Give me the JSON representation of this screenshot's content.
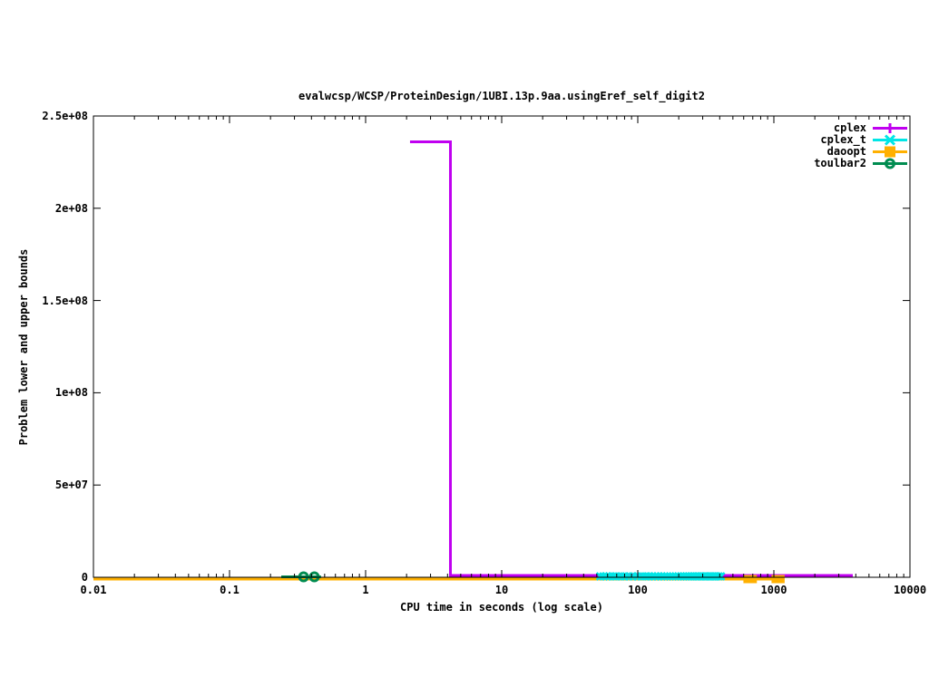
{
  "chart_data": {
    "type": "line",
    "title": "evalwcsp/WCSP/ProteinDesign/1UBI.13p.9aa.usingEref_self_digit2",
    "xlabel": "CPU time in seconds (log scale)",
    "ylabel": "Problem lower and upper bounds",
    "x_scale": "log",
    "xlim": [
      0.01,
      10000
    ],
    "ylim": [
      0,
      250000000
    ],
    "x_ticks": [
      {
        "value": 0.01,
        "label": "0.01"
      },
      {
        "value": 0.1,
        "label": "0.1"
      },
      {
        "value": 1,
        "label": "1"
      },
      {
        "value": 10,
        "label": "10"
      },
      {
        "value": 100,
        "label": "100"
      },
      {
        "value": 1000,
        "label": "1000"
      },
      {
        "value": 10000,
        "label": "10000"
      }
    ],
    "y_ticks": [
      {
        "value": 0,
        "label": "0"
      },
      {
        "value": 50000000,
        "label": "5e+07"
      },
      {
        "value": 100000000,
        "label": "1e+08"
      },
      {
        "value": 150000000,
        "label": "1.5e+08"
      },
      {
        "value": 200000000,
        "label": "2e+08"
      },
      {
        "value": 250000000,
        "label": "2.5e+08"
      }
    ],
    "grid": false,
    "legend_position": "top-right-inside",
    "series": [
      {
        "name": "cplex",
        "color": "#c000f0",
        "marker": "plus",
        "line_width": 3,
        "zero_dy": -2,
        "paths": [
          [
            [
              2.12,
              236000000
            ],
            [
              4.2,
              236000000
            ],
            [
              4.2,
              0
            ],
            [
              3800,
              0
            ]
          ]
        ],
        "marker_points_x": [],
        "marker_y": 0
      },
      {
        "name": "daoopt",
        "color": "#ffb000",
        "marker": "square",
        "line_width": 3,
        "zero_dy": 2,
        "paths": [
          [
            [
              0.01,
              0
            ],
            [
              1120,
              0
            ]
          ]
        ],
        "marker_points_x": [
          640,
          700,
          1030,
          1120
        ],
        "marker_y": 0
      },
      {
        "name": "cplex_t",
        "color": "#00e6e6",
        "marker": "x",
        "line_width": 2,
        "zero_dy": -1,
        "paths": [
          [
            [
              53,
              0
            ],
            [
              410,
              0
            ]
          ]
        ],
        "marker_points_x": [
          53,
          56,
          59,
          62,
          66,
          70,
          75,
          80,
          86,
          92,
          99,
          106,
          113,
          120,
          127,
          134,
          141,
          149,
          157,
          165,
          173,
          181,
          190,
          199,
          208,
          217,
          227,
          237,
          247,
          257,
          268,
          279,
          290,
          302,
          314,
          326,
          339,
          352,
          365,
          379,
          393,
          408
        ],
        "marker_y": 0
      },
      {
        "name": "toulbar2",
        "color": "#008c50",
        "marker": "circle",
        "line_width": 3,
        "zero_dy": -0.5,
        "paths": [
          [
            [
              0.24,
              0
            ],
            [
              0.47,
              0
            ]
          ]
        ],
        "marker_points_x": [
          0.35,
          0.42
        ],
        "marker_y": 0
      }
    ],
    "legend": [
      {
        "label": "cplex",
        "color": "#c000f0",
        "marker": "plus"
      },
      {
        "label": "cplex_t",
        "color": "#00e6e6",
        "marker": "x"
      },
      {
        "label": "daoopt",
        "color": "#ffb000",
        "marker": "square"
      },
      {
        "label": "toulbar2",
        "color": "#008c50",
        "marker": "circle"
      }
    ]
  },
  "colors": {
    "background": "#ffffff",
    "axis": "#000000",
    "cplex": "#c000f0",
    "cplex_t": "#00e6e6",
    "daoopt": "#ffb000",
    "toulbar2": "#008c50"
  }
}
